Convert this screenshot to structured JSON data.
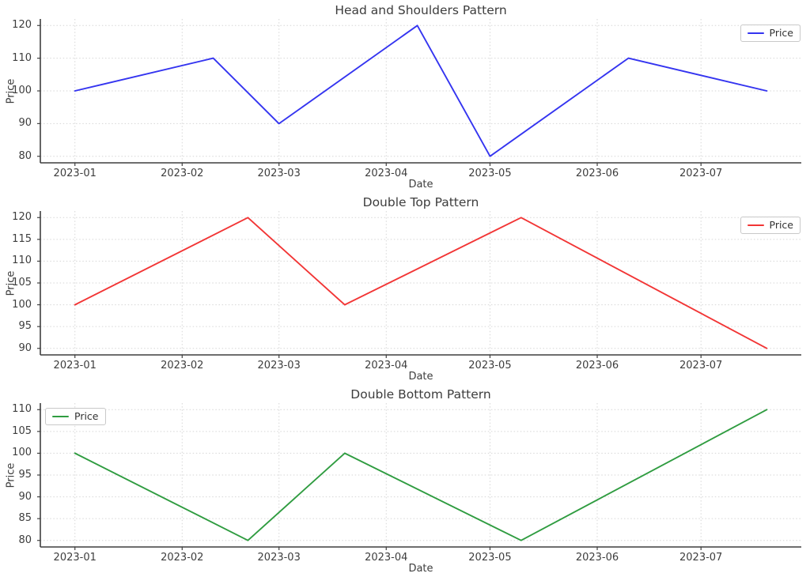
{
  "chart_data": [
    {
      "type": "line",
      "title": "Head and Shoulders Pattern",
      "xlabel": "Date",
      "ylabel": "Price",
      "x": [
        "2023-01-01",
        "2023-02-10",
        "2023-03-01",
        "2023-04-10",
        "2023-05-01",
        "2023-06-10",
        "2023-07-20"
      ],
      "series": [
        {
          "name": "Price",
          "color": "#3434f0",
          "values": [
            100,
            110,
            90,
            120,
            80,
            110,
            100
          ]
        }
      ],
      "x_ticks": [
        "2023-01",
        "2023-02",
        "2023-03",
        "2023-04",
        "2023-05",
        "2023-06",
        "2023-07"
      ],
      "y_ticks": [
        80,
        90,
        100,
        110,
        120
      ],
      "ylim": [
        78,
        122
      ],
      "grid": true,
      "legend_position": "top-right"
    },
    {
      "type": "line",
      "title": "Double Top Pattern",
      "xlabel": "Date",
      "ylabel": "Price",
      "x": [
        "2023-01-01",
        "2023-02-20",
        "2023-03-20",
        "2023-05-10",
        "2023-07-20"
      ],
      "series": [
        {
          "name": "Price",
          "color": "#f23535",
          "values": [
            100,
            120,
            100,
            120,
            90
          ]
        }
      ],
      "x_ticks": [
        "2023-01",
        "2023-02",
        "2023-03",
        "2023-04",
        "2023-05",
        "2023-06",
        "2023-07"
      ],
      "y_ticks": [
        90,
        95,
        100,
        105,
        110,
        115,
        120
      ],
      "ylim": [
        88.5,
        121.5
      ],
      "grid": true,
      "legend_position": "top-right"
    },
    {
      "type": "line",
      "title": "Double Bottom Pattern",
      "xlabel": "Date",
      "ylabel": "Price",
      "x": [
        "2023-01-01",
        "2023-02-20",
        "2023-03-20",
        "2023-05-10",
        "2023-07-20"
      ],
      "series": [
        {
          "name": "Price",
          "color": "#2f9c40",
          "values": [
            100,
            80,
            100,
            80,
            110
          ]
        }
      ],
      "x_ticks": [
        "2023-01",
        "2023-02",
        "2023-03",
        "2023-04",
        "2023-05",
        "2023-06",
        "2023-07"
      ],
      "y_ticks": [
        80,
        85,
        90,
        95,
        100,
        105,
        110
      ],
      "ylim": [
        78.5,
        111.5
      ],
      "grid": true,
      "legend_position": "top-left"
    }
  ]
}
